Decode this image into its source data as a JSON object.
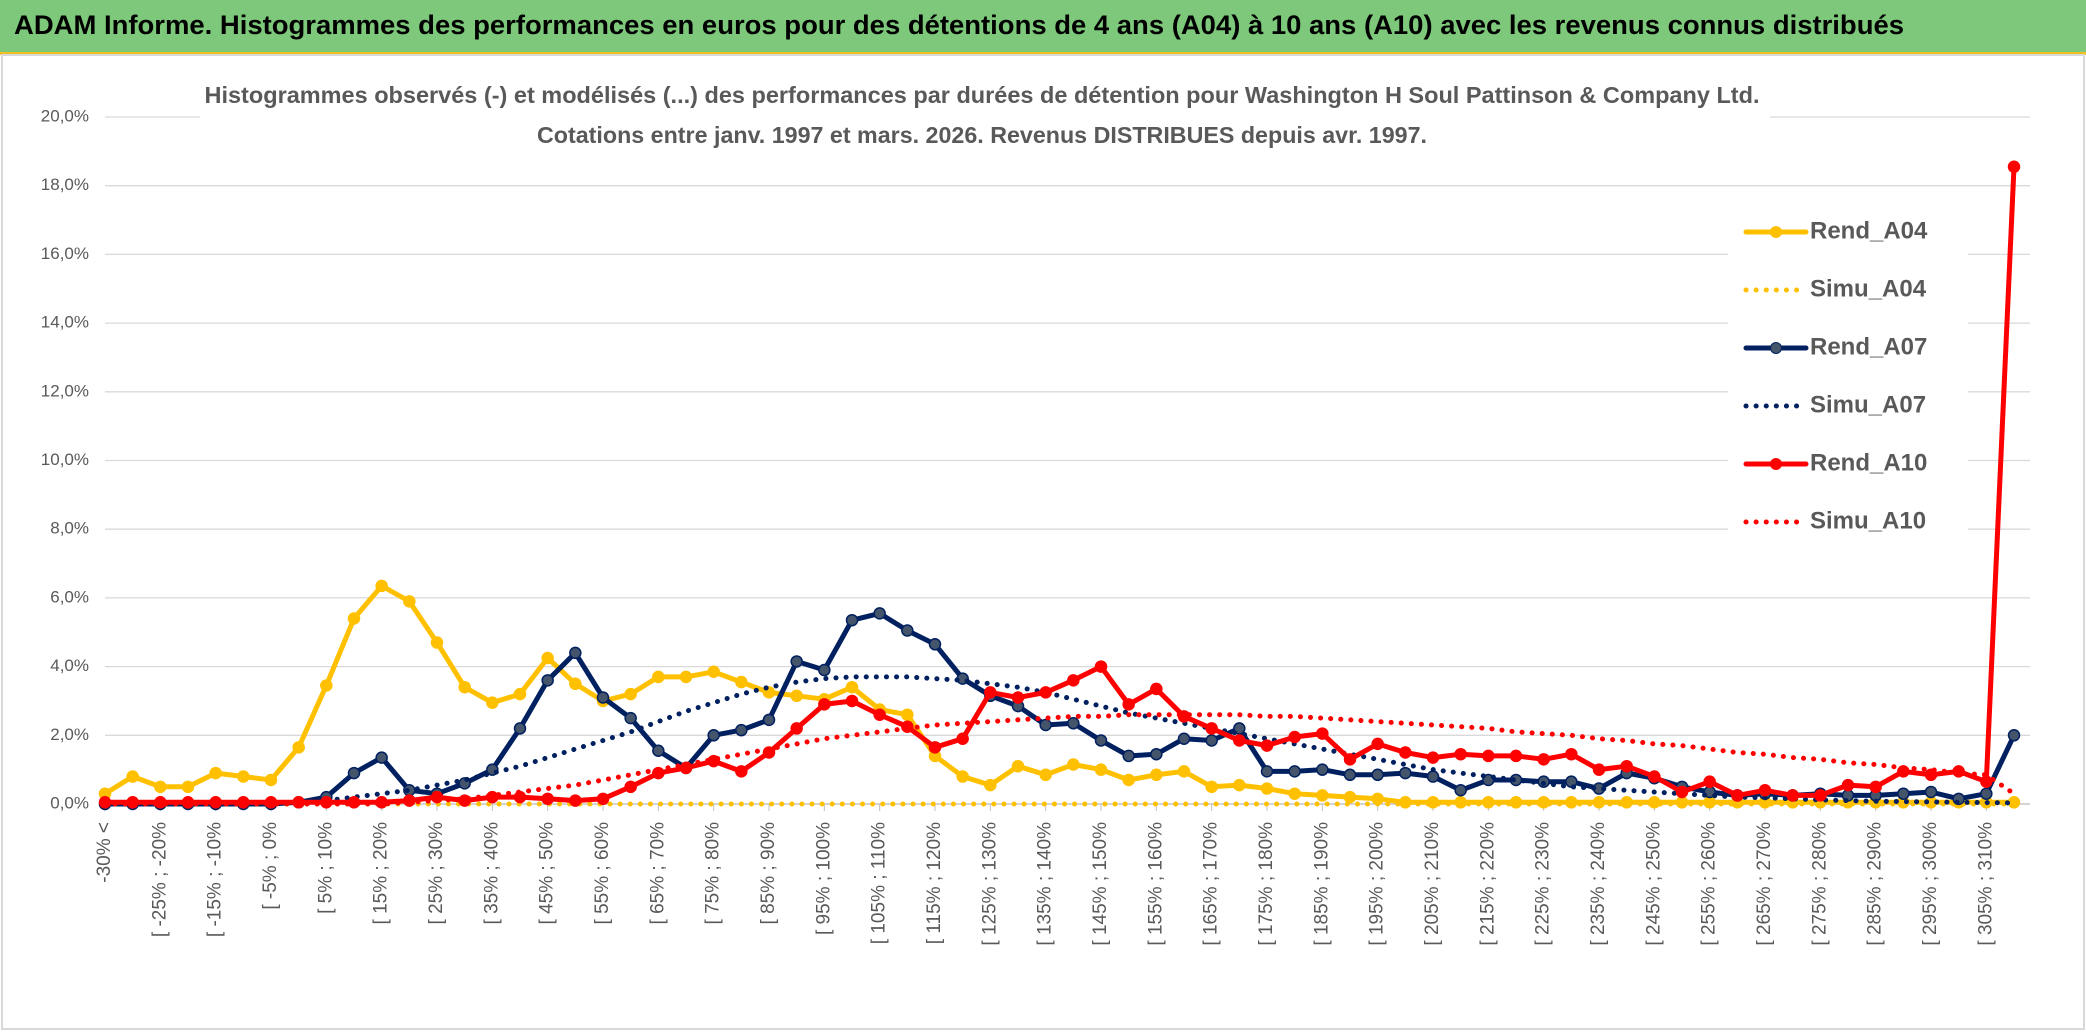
{
  "chart_data": {
    "type": "line",
    "title": "ADAM Informe. Histogrammes des performances en euros pour des détentions de 4 ans (A04) à 10 ans (A10) avec les revenus connus distribués",
    "subtitle": [
      "Histogrammes observés (-) et modélisés (...) des performances par durées de détention pour Washington H Soul Pattinson & Company Ltd.",
      "Cotations entre janv. 1997 et mars. 2026. Revenus DISTRIBUES depuis avr. 1997."
    ],
    "categories": [
      "-30% <",
      null,
      "[ -25% ; -20%",
      null,
      "[ -15% ; -10%",
      null,
      "[ -5% ; 0%",
      null,
      "[ 5% ; 10%",
      null,
      "[ 15% ; 20%",
      null,
      "[ 25% ; 30%",
      null,
      "[ 35% ; 40%",
      null,
      "[ 45% ; 50%",
      null,
      "[ 55% ; 60%",
      null,
      "[ 65% ; 70%",
      null,
      "[ 75% ; 80%",
      null,
      "[ 85% ; 90%",
      null,
      "[ 95% ; 100%",
      null,
      "[ 105% ; 110%",
      null,
      "[ 115% ; 120%",
      null,
      "[ 125% ; 130%",
      null,
      "[ 135% ; 140%",
      null,
      "[ 145% ; 150%",
      null,
      "[ 155% ; 160%",
      null,
      "[ 165% ; 170%",
      null,
      "[ 175% ; 180%",
      null,
      "[ 185% ; 190%",
      null,
      "[ 195% ; 200%",
      null,
      "[ 205% ; 210%",
      null,
      "[ 215% ; 220%",
      null,
      "[ 225% ; 230%",
      null,
      "[ 235% ; 240%",
      null,
      "[ 245% ; 250%",
      null,
      "[ 255% ; 260%",
      null,
      "[ 265% ; 270%",
      null,
      "[ 275% ; 280%",
      null,
      "[ 285% ; 290%",
      null,
      "[ 295% ; 300%",
      null,
      "[ 305% ; 310%",
      null
    ],
    "series": [
      {
        "name": "Rend_A04",
        "color": "#ffc000",
        "style": "solid",
        "markers": true,
        "values": [
          0.3,
          0.8,
          0.5,
          0.5,
          0.9,
          0.8,
          0.7,
          1.65,
          3.45,
          5.4,
          6.35,
          5.9,
          4.7,
          3.4,
          2.95,
          3.2,
          4.25,
          3.5,
          3.0,
          3.2,
          3.7,
          3.7,
          3.85,
          3.55,
          3.25,
          3.15,
          3.05,
          3.4,
          2.75,
          2.6,
          1.4,
          0.8,
          0.55,
          1.1,
          0.85,
          1.15,
          1.0,
          0.7,
          0.85,
          0.95,
          0.5,
          0.55,
          0.45,
          0.3,
          0.25,
          0.2,
          0.15,
          0.05,
          0.05,
          0.05,
          0.05,
          0.05,
          0.05,
          0.05,
          0.05,
          0.05,
          0.05,
          0.05,
          0.05,
          0.05,
          0.05,
          0.05,
          0.05,
          0.05,
          0.05,
          0.05,
          0.05,
          0.05,
          0.05,
          0.05
        ]
      },
      {
        "name": "Simu_A04",
        "color": "#ffc000",
        "style": "dotted",
        "markers": false,
        "values": [
          0,
          0,
          0,
          0,
          0,
          0,
          0,
          0,
          0,
          0,
          0,
          0,
          0,
          0,
          0,
          0,
          0,
          0,
          0,
          0,
          0,
          0,
          0,
          0,
          0,
          0,
          0,
          0,
          0,
          0,
          0,
          0,
          0,
          0,
          0,
          0,
          0,
          0,
          0,
          0,
          0,
          0,
          0,
          0,
          0,
          0,
          0,
          0,
          0,
          0,
          0,
          0,
          0,
          0,
          0,
          0,
          0,
          0,
          0,
          0,
          0,
          0,
          0,
          0,
          0,
          0,
          0,
          0,
          0,
          0
        ]
      },
      {
        "name": "Rend_A07",
        "color": "#002060",
        "style": "solid",
        "markers": true,
        "values": [
          0,
          0,
          0,
          0,
          0,
          0,
          0,
          0.05,
          0.2,
          0.9,
          1.35,
          0.4,
          0.3,
          0.6,
          1.0,
          2.2,
          3.6,
          4.4,
          3.1,
          2.5,
          1.55,
          1.05,
          2.0,
          2.15,
          2.45,
          4.15,
          3.9,
          5.35,
          5.55,
          5.05,
          4.65,
          3.65,
          3.15,
          2.85,
          2.3,
          2.35,
          1.85,
          1.4,
          1.45,
          1.9,
          1.85,
          2.2,
          0.95,
          0.95,
          1.0,
          0.85,
          0.85,
          0.9,
          0.8,
          0.4,
          0.7,
          0.7,
          0.65,
          0.65,
          0.45,
          0.9,
          0.75,
          0.5,
          0.35,
          0.25,
          0.3,
          0.25,
          0.3,
          0.25,
          0.25,
          0.3,
          0.35,
          0.15,
          0.3,
          2.0
        ]
      },
      {
        "name": "Simu_A07",
        "color": "#002060",
        "style": "dotted",
        "markers": false,
        "values": [
          0,
          0,
          0,
          0,
          0,
          0,
          0,
          0.05,
          0.1,
          0.2,
          0.3,
          0.4,
          0.55,
          0.7,
          0.9,
          1.1,
          1.35,
          1.6,
          1.85,
          2.1,
          2.4,
          2.7,
          2.95,
          3.2,
          3.4,
          3.55,
          3.65,
          3.7,
          3.7,
          3.7,
          3.65,
          3.6,
          3.5,
          3.4,
          3.25,
          3.05,
          2.85,
          2.65,
          2.5,
          2.35,
          2.2,
          2.05,
          1.9,
          1.75,
          1.6,
          1.45,
          1.3,
          1.15,
          1.0,
          0.9,
          0.8,
          0.7,
          0.6,
          0.5,
          0.45,
          0.4,
          0.35,
          0.3,
          0.25,
          0.2,
          0.18,
          0.15,
          0.12,
          0.1,
          0.08,
          0.07,
          0.06,
          0.05,
          0.04,
          0.03
        ]
      },
      {
        "name": "Rend_A10",
        "color": "#ff0000",
        "style": "solid",
        "markers": true,
        "values": [
          0.05,
          0.05,
          0.05,
          0.05,
          0.05,
          0.05,
          0.05,
          0.05,
          0.05,
          0.05,
          0.05,
          0.1,
          0.2,
          0.1,
          0.2,
          0.2,
          0.15,
          0.1,
          0.15,
          0.5,
          0.9,
          1.05,
          1.25,
          0.95,
          1.5,
          2.2,
          2.9,
          3.0,
          2.6,
          2.25,
          1.65,
          1.9,
          3.25,
          3.1,
          3.25,
          3.6,
          4.0,
          2.9,
          3.35,
          2.55,
          2.2,
          1.85,
          1.7,
          1.95,
          2.05,
          1.3,
          1.75,
          1.5,
          1.35,
          1.45,
          1.4,
          1.4,
          1.3,
          1.45,
          1.0,
          1.1,
          0.8,
          0.35,
          0.65,
          0.25,
          0.4,
          0.25,
          0.25,
          0.55,
          0.5,
          0.95,
          0.85,
          0.95,
          0.65,
          18.55
        ]
      },
      {
        "name": "Simu_A10",
        "color": "#ff0000",
        "style": "dotted",
        "markers": false,
        "values": [
          0,
          0,
          0,
          0,
          0,
          0,
          0,
          0,
          0,
          0,
          0,
          0.05,
          0.1,
          0.15,
          0.25,
          0.35,
          0.45,
          0.55,
          0.7,
          0.85,
          1.0,
          1.15,
          1.3,
          1.45,
          1.6,
          1.75,
          1.9,
          2.0,
          2.1,
          2.2,
          2.3,
          2.35,
          2.4,
          2.45,
          2.5,
          2.55,
          2.55,
          2.6,
          2.6,
          2.6,
          2.6,
          2.6,
          2.55,
          2.55,
          2.5,
          2.45,
          2.4,
          2.35,
          2.3,
          2.25,
          2.2,
          2.1,
          2.05,
          2.0,
          1.9,
          1.85,
          1.75,
          1.7,
          1.6,
          1.5,
          1.45,
          1.35,
          1.3,
          1.2,
          1.15,
          1.05,
          1.0,
          0.9,
          0.85,
          0.3
        ]
      }
    ],
    "ylim": [
      0,
      20
    ],
    "yticks": [
      {
        "value": 0,
        "label": "0,0%"
      },
      {
        "value": 2,
        "label": "2,0%"
      },
      {
        "value": 4,
        "label": "4,0%"
      },
      {
        "value": 6,
        "label": "6,0%"
      },
      {
        "value": 8,
        "label": "8,0%"
      },
      {
        "value": 10,
        "label": "10,0%"
      },
      {
        "value": 12,
        "label": "12,0%"
      },
      {
        "value": 14,
        "label": "14,0%"
      },
      {
        "value": 16,
        "label": "16,0%"
      },
      {
        "value": 18,
        "label": "18,0%"
      },
      {
        "value": 20,
        "label": "20,0%"
      }
    ],
    "grid": true,
    "legend": "right"
  }
}
